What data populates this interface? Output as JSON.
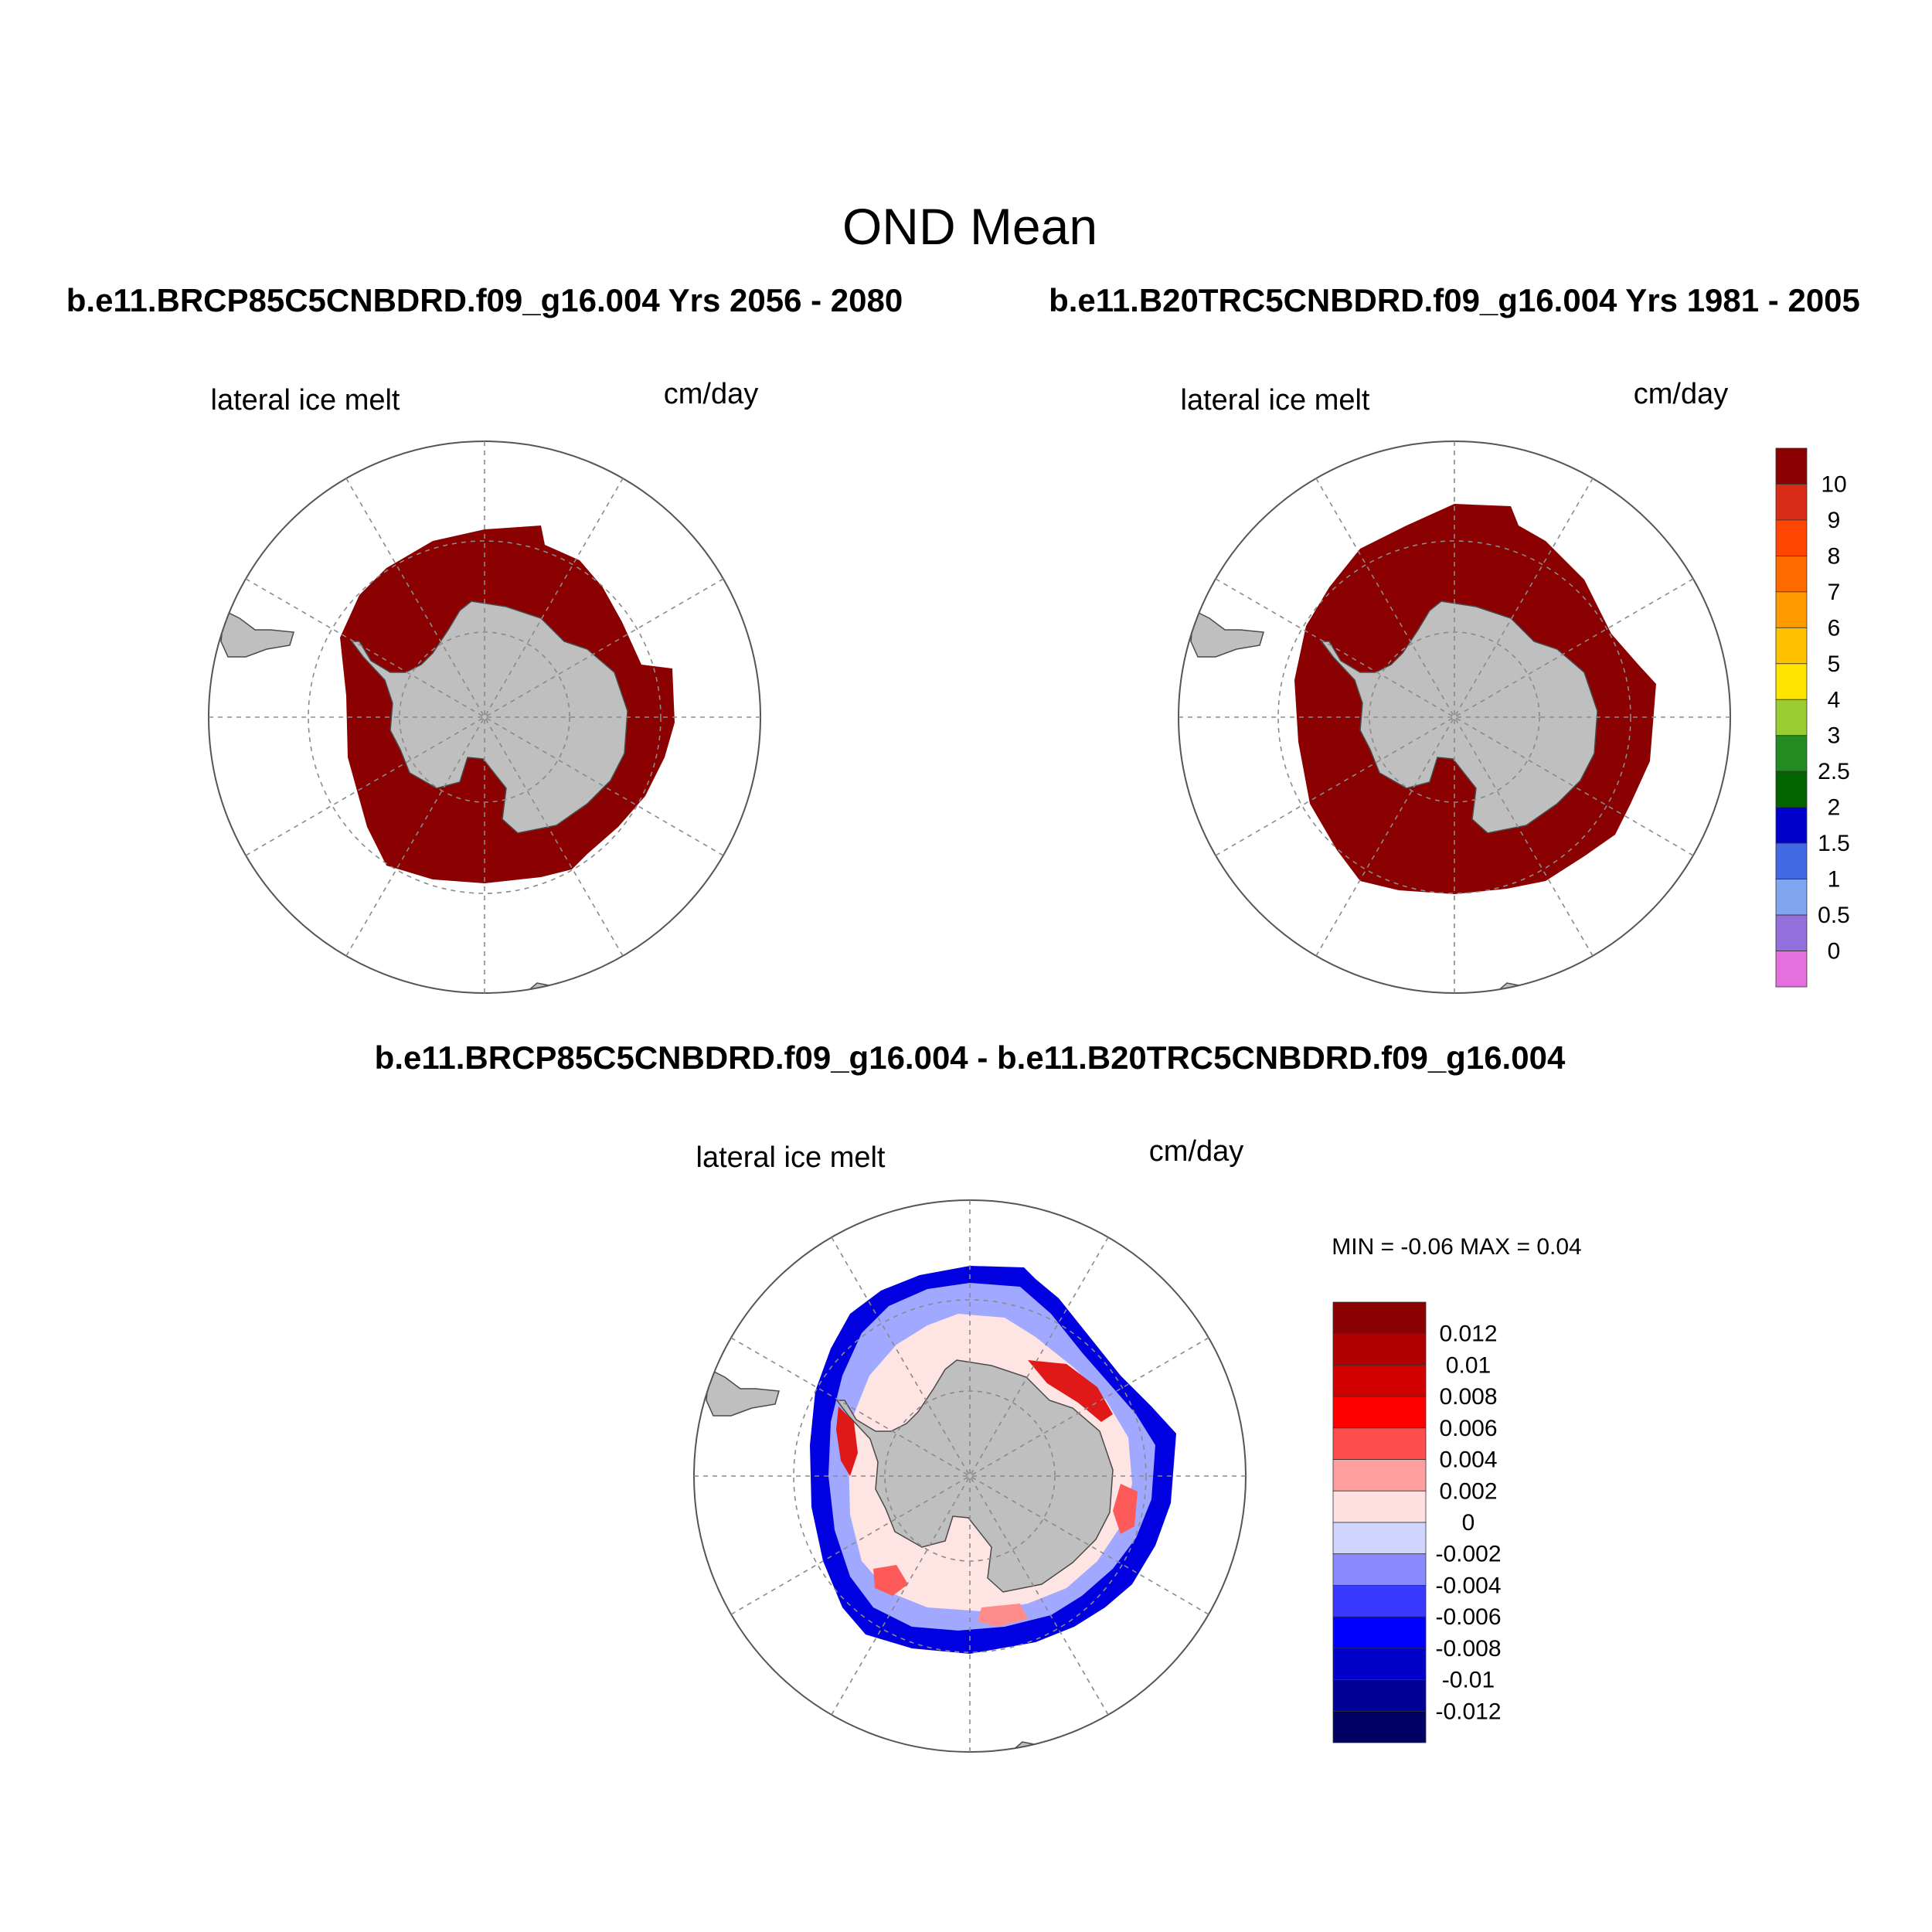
{
  "title": "OND Mean",
  "top_left": {
    "header": "b.e11.BRCP85C5CNBDRD.f09_g16.004  Yrs 2056 - 2080",
    "variable": "lateral ice melt",
    "units": "cm/day",
    "fill_color": "#8b0000"
  },
  "top_right": {
    "header": "b.e11.B20TRC5CNBDRD.f09_g16.004  Yrs 1981 - 2005",
    "variable": "lateral ice melt",
    "units": "cm/day",
    "fill_color": "#8b0000"
  },
  "bottom": {
    "header": "b.e11.BRCP85C5CNBDRD.f09_g16.004 - b.e11.B20TRC5CNBDRD.f09_g16.004",
    "variable": "lateral ice melt",
    "units": "cm/day",
    "min_max": "MIN =  -0.06 MAX =   0.04"
  },
  "colorbar_top": {
    "labels": [
      "10",
      "9",
      "8",
      "7",
      "6",
      "5",
      "4",
      "3",
      "2.5",
      "2",
      "1.5",
      "1",
      "0.5",
      "0"
    ],
    "colors": [
      "#8b0000",
      "#d92b16",
      "#ff4500",
      "#ff6a00",
      "#ff9a00",
      "#ffc200",
      "#ffe400",
      "#9acd32",
      "#228b22",
      "#006400",
      "#0000cd",
      "#4169e1",
      "#7fa6ee",
      "#9370db",
      "#e46fdf"
    ]
  },
  "colorbar_bottom": {
    "labels": [
      "0.012",
      "0.01",
      "0.008",
      "0.006",
      "0.004",
      "0.002",
      "0",
      "-0.002",
      "-0.004",
      "-0.006",
      "-0.008",
      "-0.01",
      "-0.012"
    ],
    "colors": [
      "#8b0000",
      "#b00000",
      "#d20000",
      "#ff0000",
      "#ff4c4c",
      "#ff9e9e",
      "#ffe0e0",
      "#cfd5ff",
      "#8a8aff",
      "#3838ff",
      "#0000ff",
      "#0000c8",
      "#000096",
      "#000064"
    ]
  },
  "land_color": "#bfbfbf"
}
